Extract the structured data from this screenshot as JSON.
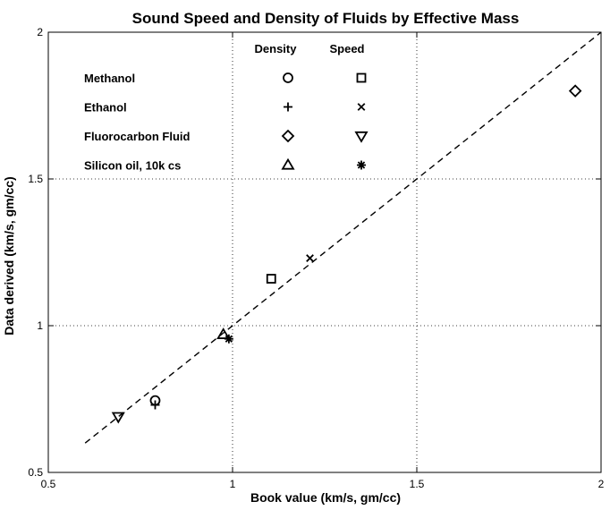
{
  "chart_data": {
    "type": "scatter",
    "title": "Sound Speed and Density of Fluids by Effective Mass",
    "xlabel": "Book value (km/s, gm/cc)",
    "ylabel": "Data derived (km/s, gm/cc)",
    "xlim": [
      0.5,
      2
    ],
    "ylim": [
      0.5,
      2
    ],
    "xticks": [
      "0.5",
      "1",
      "1.5",
      "2"
    ],
    "yticks": [
      "0.5",
      "1",
      "1.5",
      "2"
    ],
    "grid": "dotted",
    "reference_line": {
      "style": "dashed",
      "x": [
        0.6,
        2.0
      ],
      "y": [
        0.6,
        2.0
      ]
    },
    "legend": {
      "position": "top-left",
      "column_headers": [
        "Density",
        "Speed"
      ],
      "rows": [
        {
          "label": "Methanol",
          "density_marker": "circle",
          "speed_marker": "square"
        },
        {
          "label": "Ethanol",
          "density_marker": "plus",
          "speed_marker": "x"
        },
        {
          "label": "Fluorocarbon  Fluid",
          "density_marker": "diamond",
          "speed_marker": "triangle-down"
        },
        {
          "label": "Silicon oil, 10k cs",
          "density_marker": "triangle-up",
          "speed_marker": "asterisk"
        }
      ]
    },
    "series": [
      {
        "name": "Methanol density",
        "marker": "circle",
        "x": [
          0.79
        ],
        "y": [
          0.745
        ]
      },
      {
        "name": "Methanol speed",
        "marker": "square",
        "x": [
          1.105
        ],
        "y": [
          1.16
        ]
      },
      {
        "name": "Ethanol density",
        "marker": "plus",
        "x": [
          0.79
        ],
        "y": [
          0.73
        ]
      },
      {
        "name": "Ethanol speed",
        "marker": "x",
        "x": [
          1.21
        ],
        "y": [
          1.23
        ]
      },
      {
        "name": "Fluorocarbon Fluid density",
        "marker": "diamond",
        "x": [
          1.93
        ],
        "y": [
          1.8
        ]
      },
      {
        "name": "Fluorocarbon Fluid speed",
        "marker": "triangle-down",
        "x": [
          0.69
        ],
        "y": [
          0.69
        ]
      },
      {
        "name": "Silicon oil, 10k cs density",
        "marker": "triangle-up",
        "x": [
          0.975
        ],
        "y": [
          0.97
        ]
      },
      {
        "name": "Silicon oil, 10k cs speed",
        "marker": "asterisk",
        "x": [
          0.99
        ],
        "y": [
          0.955
        ]
      }
    ]
  }
}
